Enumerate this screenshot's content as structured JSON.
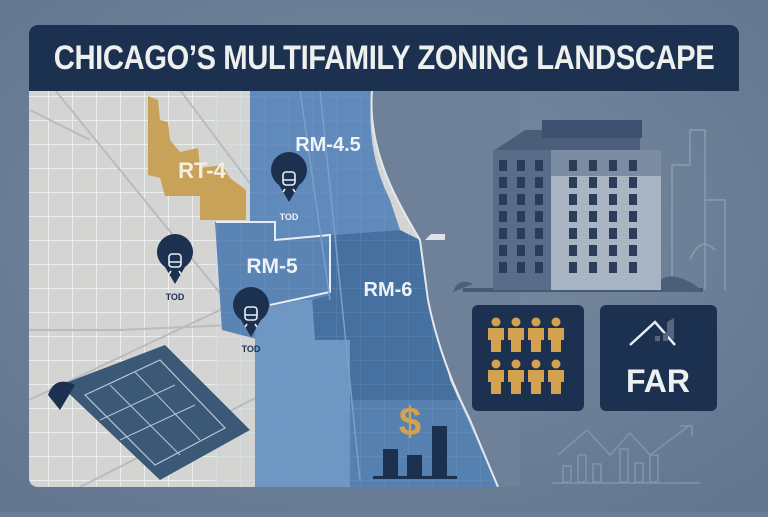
{
  "title": "CHICAGO’S MULTIFAMILY ZONING LANDSCAPE",
  "map": {
    "zones": [
      {
        "label": "RT-4",
        "color": "#c9a25a"
      },
      {
        "label": "RM-4.5",
        "color": "#5f8abb"
      },
      {
        "label": "RM-5",
        "color": "#5a84b4"
      },
      {
        "label": "RM-6",
        "color": "#46709f"
      }
    ],
    "transit_pins": [
      {
        "label": "TOD",
        "icon": "train-icon"
      },
      {
        "label": "TOD",
        "icon": "train-icon"
      },
      {
        "label": "TOD",
        "icon": "train-icon"
      }
    ]
  },
  "icons": {
    "density_box": "people-icon",
    "far_box": "FAR",
    "cost_symbol": "$"
  },
  "colors": {
    "background": "#6a7e95",
    "navy": "#1c3150",
    "gold": "#c9a25a",
    "map_base": "#d4d5d3"
  }
}
